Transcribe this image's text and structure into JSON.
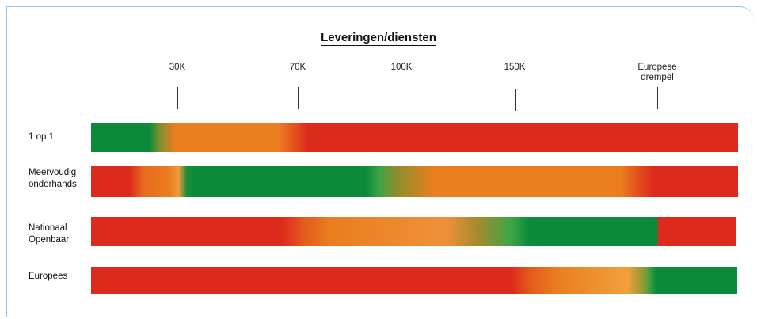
{
  "title": "Leveringen/diensten",
  "thresholds": [
    {
      "label": "30K"
    },
    {
      "label": "70K"
    },
    {
      "label": "100K"
    },
    {
      "label": "150K"
    },
    {
      "label": "Europese drempel"
    }
  ],
  "rows": [
    {
      "label": "1 op 1"
    },
    {
      "label": "Meervoudig onderhands"
    },
    {
      "label": "Nationaal Openbaar"
    },
    {
      "label": "Europees"
    }
  ],
  "colors": {
    "green": "#0b8a3a",
    "orange": "#ea7d1e",
    "red": "#dc2a1c"
  }
}
